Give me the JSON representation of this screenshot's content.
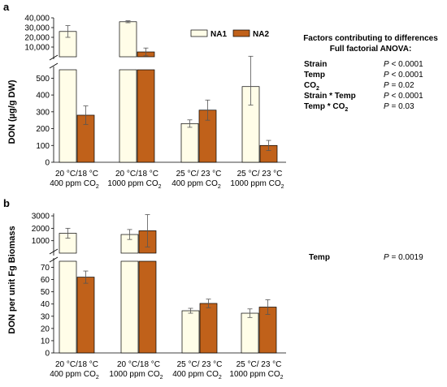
{
  "chart_data": [
    {
      "type": "bar",
      "panel_label": "a",
      "ylabel": "DON (µg/g DW)",
      "broken_axis": true,
      "upper_ticks": [
        "40,000",
        "30,000",
        "20,000",
        "10,000"
      ],
      "upper_range": [
        0,
        40000
      ],
      "lower_ticks": [
        "0",
        "100",
        "200",
        "300",
        "400",
        "500"
      ],
      "lower_range": [
        0,
        550
      ],
      "categories": [
        [
          "20 °C/18 °C",
          "400 ppm CO",
          "2"
        ],
        [
          "20 °C/18 °C",
          "1000 ppm CO",
          "2"
        ],
        [
          "25 °C/ 23 °C",
          "400 ppm CO",
          "2"
        ],
        [
          "25 °C/ 23 °C",
          "1000 ppm CO",
          "2"
        ]
      ],
      "series": [
        {
          "name": "NA1",
          "color": "#fffde8",
          "values": [
            26000,
            36000,
            230,
            450
          ],
          "errors": [
            6000,
            1000,
            22,
            110
          ]
        },
        {
          "name": "NA2",
          "color": "#c0611a",
          "values": [
            280,
            5000,
            310,
            100
          ],
          "errors": [
            55,
            4000,
            60,
            30
          ]
        }
      ],
      "legend": {
        "placement": "top-right"
      },
      "anova": {
        "title_line1": "Factors contributing to differences",
        "title_line2": "Full factorial ANOVA:",
        "rows": [
          {
            "factor": "Strain",
            "p_label": "P",
            "p_value": " < 0.0001"
          },
          {
            "factor": "Temp",
            "p_label": "P",
            "p_value": " < 0.0001"
          },
          {
            "factor": "CO",
            "factor_sub": "2",
            "p_label": "P",
            "p_value": " = 0.02"
          },
          {
            "factor": "Strain * Temp",
            "p_label": "P",
            "p_value": " < 0.0001"
          },
          {
            "factor": "Temp * CO",
            "factor_sub": "2",
            "p_label": "P",
            "p_value": " = 0.03"
          }
        ]
      }
    },
    {
      "type": "bar",
      "panel_label": "b",
      "ylabel": "DON per unit Fg Biomass",
      "broken_axis": true,
      "upper_ticks": [
        "3000",
        "2000",
        "1000"
      ],
      "upper_range": [
        0,
        3200
      ],
      "lower_ticks": [
        "0",
        "10",
        "20",
        "30",
        "40",
        "50",
        "60",
        "70"
      ],
      "lower_range": [
        0,
        75
      ],
      "categories": [
        [
          "20 °C/18 °C",
          "400 ppm CO",
          "2"
        ],
        [
          "20 °C/18 °C",
          "1000 ppm CO",
          "2"
        ],
        [
          "25 °C/ 23 °C",
          "400 ppm CO",
          "2"
        ],
        [
          "25 °C/ 23 °C",
          "1000 ppm CO",
          "2"
        ]
      ],
      "series": [
        {
          "name": "NA1",
          "color": "#fffde8",
          "values": [
            1600,
            1500,
            34.5,
            32.5
          ],
          "errors": [
            400,
            400,
            2,
            3.5
          ]
        },
        {
          "name": "NA2",
          "color": "#c0611a",
          "values": [
            62,
            1800,
            40.5,
            37.5
          ],
          "errors": [
            5,
            1300,
            3.5,
            6
          ]
        }
      ],
      "anova": {
        "rows": [
          {
            "factor": "Temp",
            "p_label": "P",
            "p_value": " = 0.0019"
          }
        ]
      }
    }
  ]
}
